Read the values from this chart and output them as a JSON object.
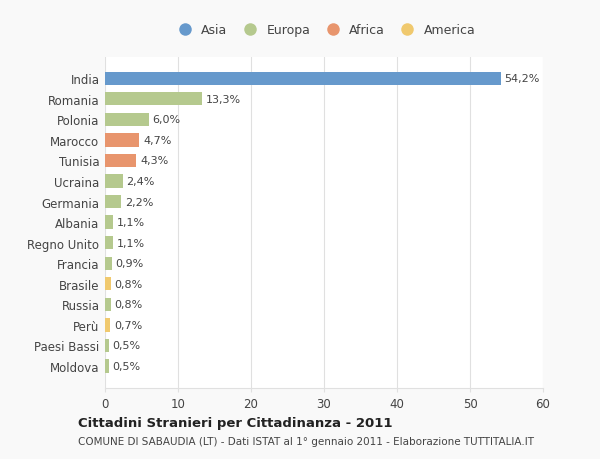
{
  "categories": [
    "India",
    "Romania",
    "Polonia",
    "Marocco",
    "Tunisia",
    "Ucraina",
    "Germania",
    "Albania",
    "Regno Unito",
    "Francia",
    "Brasile",
    "Russia",
    "Perù",
    "Paesi Bassi",
    "Moldova"
  ],
  "values": [
    54.2,
    13.3,
    6.0,
    4.7,
    4.3,
    2.4,
    2.2,
    1.1,
    1.1,
    0.9,
    0.8,
    0.8,
    0.7,
    0.5,
    0.5
  ],
  "labels": [
    "54,2%",
    "13,3%",
    "6,0%",
    "4,7%",
    "4,3%",
    "2,4%",
    "2,2%",
    "1,1%",
    "1,1%",
    "0,9%",
    "0,8%",
    "0,8%",
    "0,7%",
    "0,5%",
    "0,5%"
  ],
  "colors": [
    "#6699cc",
    "#b5c98e",
    "#b5c98e",
    "#e8956d",
    "#e8956d",
    "#b5c98e",
    "#b5c98e",
    "#b5c98e",
    "#b5c98e",
    "#b5c98e",
    "#f0c96e",
    "#b5c98e",
    "#f0c96e",
    "#b5c98e",
    "#b5c98e"
  ],
  "legend_labels": [
    "Asia",
    "Europa",
    "Africa",
    "America"
  ],
  "legend_colors": [
    "#6699cc",
    "#b5c98e",
    "#e8956d",
    "#f0c96e"
  ],
  "xlim": [
    0,
    60
  ],
  "xticks": [
    0,
    10,
    20,
    30,
    40,
    50,
    60
  ],
  "title": "Cittadini Stranieri per Cittadinanza - 2011",
  "subtitle": "COMUNE DI SABAUDIA (LT) - Dati ISTAT al 1° gennaio 2011 - Elaborazione TUTTITALIA.IT",
  "bg_color": "#f9f9f9",
  "plot_bg_color": "#ffffff",
  "text_color": "#444444",
  "grid_color": "#e0e0e0",
  "bar_height": 0.65,
  "label_fontsize": 8.0,
  "ytick_fontsize": 8.5,
  "xtick_fontsize": 8.5
}
